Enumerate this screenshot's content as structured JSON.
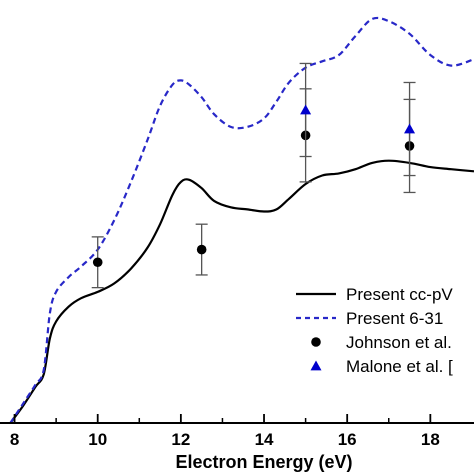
{
  "chart_data": {
    "type": "line",
    "xlabel": "Electron Energy (eV)",
    "ylabel": "",
    "xlim": [
      7.65,
      19.05
    ],
    "ylim": [
      0,
      1
    ],
    "x_ticks": [
      8,
      10,
      12,
      14,
      16,
      18
    ],
    "tick_labels": [
      "8",
      "10",
      "12",
      "14",
      "16",
      "18"
    ],
    "legend_position": "lower-right",
    "grid": false,
    "series": [
      {
        "name": "Present  cc-pV",
        "style": "solid",
        "color": "#000000",
        "x": [
          7.9,
          8.2,
          8.5,
          8.7,
          8.85,
          9.0,
          9.3,
          9.6,
          10.0,
          10.4,
          10.8,
          11.2,
          11.5,
          11.8,
          12.0,
          12.2,
          12.5,
          12.8,
          13.2,
          13.6,
          14.0,
          14.3,
          14.6,
          15.0,
          15.4,
          15.8,
          16.2,
          16.6,
          17.0,
          17.5,
          18.0,
          18.5,
          19.05
        ],
        "values": [
          0.0,
          0.04,
          0.085,
          0.115,
          0.2,
          0.24,
          0.275,
          0.295,
          0.31,
          0.33,
          0.365,
          0.415,
          0.47,
          0.54,
          0.57,
          0.575,
          0.555,
          0.525,
          0.51,
          0.505,
          0.5,
          0.505,
          0.53,
          0.565,
          0.585,
          0.59,
          0.6,
          0.615,
          0.62,
          0.615,
          0.605,
          0.6,
          0.595
        ]
      },
      {
        "name": "Present  6-31",
        "style": "dashed",
        "color": "#2828c8",
        "x": [
          7.9,
          8.2,
          8.5,
          8.7,
          8.85,
          9.0,
          9.3,
          9.6,
          10.0,
          10.4,
          10.8,
          11.2,
          11.5,
          11.8,
          12.0,
          12.2,
          12.5,
          12.8,
          13.2,
          13.6,
          14.0,
          14.3,
          14.6,
          15.0,
          15.4,
          15.8,
          16.2,
          16.6,
          17.0,
          17.5,
          18.0,
          18.5,
          19.05
        ],
        "values": [
          0.0,
          0.045,
          0.09,
          0.125,
          0.26,
          0.31,
          0.345,
          0.37,
          0.41,
          0.48,
          0.57,
          0.67,
          0.75,
          0.8,
          0.81,
          0.8,
          0.77,
          0.73,
          0.7,
          0.7,
          0.72,
          0.76,
          0.805,
          0.84,
          0.855,
          0.87,
          0.915,
          0.955,
          0.95,
          0.92,
          0.87,
          0.845,
          0.86
        ]
      }
    ],
    "points": [
      {
        "name": "Johnson et al.",
        "marker": "circle",
        "color": "#000000",
        "data": [
          {
            "x": 10.0,
            "y": 0.38,
            "err": 0.06
          },
          {
            "x": 12.5,
            "y": 0.41,
            "err": 0.06
          },
          {
            "x": 15.0,
            "y": 0.68,
            "err": 0.11
          },
          {
            "x": 17.5,
            "y": 0.655,
            "err": 0.11
          }
        ]
      },
      {
        "name": "Malone et al. [",
        "marker": "triangle",
        "color": "#0000cc",
        "data": [
          {
            "x": 15.0,
            "y": 0.74,
            "err": 0.11
          },
          {
            "x": 17.5,
            "y": 0.695,
            "err": 0.11
          }
        ]
      }
    ]
  }
}
